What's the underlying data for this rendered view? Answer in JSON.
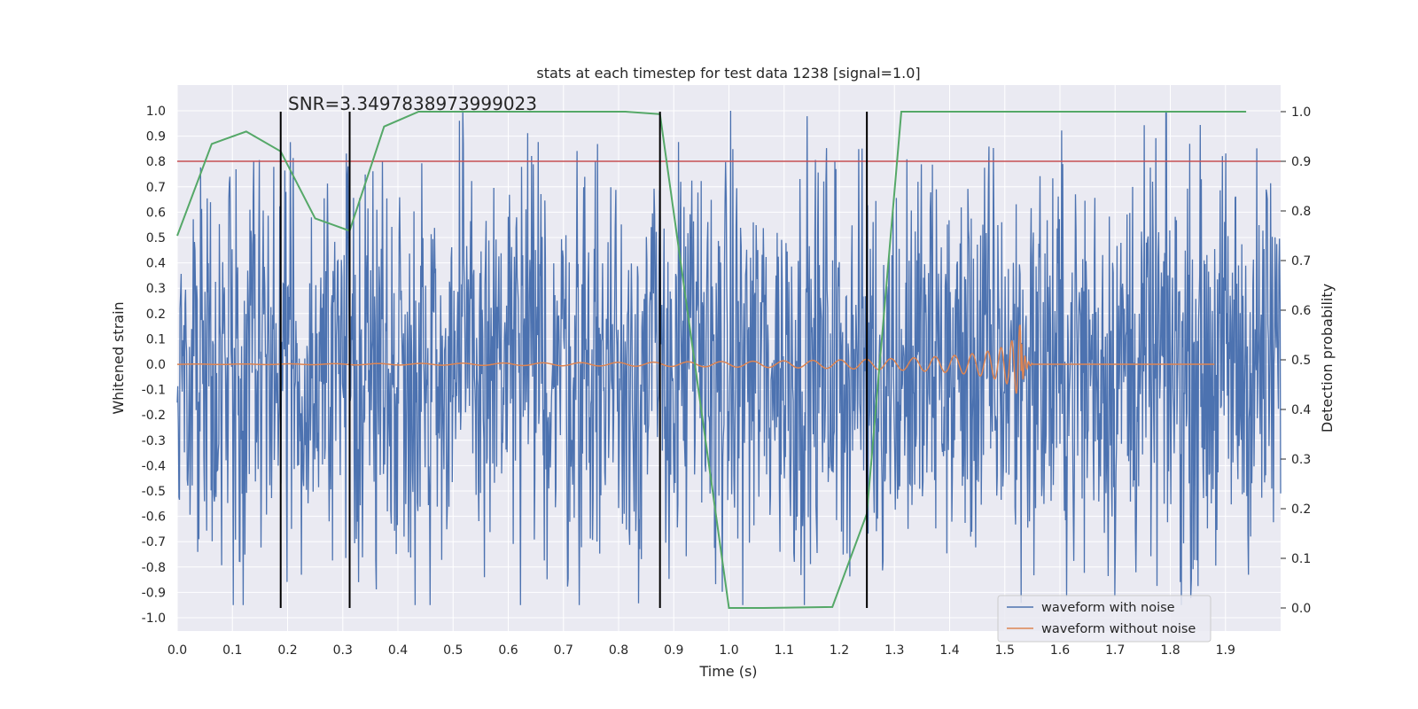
{
  "chart_data": {
    "type": "line",
    "title": "stats at each timestep for test data 1238 [signal=1.0]",
    "annotation": "SNR=3.3497838973999023",
    "xlabel": "Time (s)",
    "ylabel_left": "Whitened strain",
    "ylabel_right": "Detection probability",
    "xlim": [
      0.0,
      2.0
    ],
    "ylim_left": [
      -1.1,
      1.1
    ],
    "ylim_right": [
      -0.05,
      1.05
    ],
    "x_ticks": [
      "0.0",
      "0.1",
      "0.2",
      "0.3",
      "0.4",
      "0.5",
      "0.6",
      "0.7",
      "0.8",
      "0.9",
      "1.0",
      "1.1",
      "1.2",
      "1.3",
      "1.4",
      "1.5",
      "1.6",
      "1.7",
      "1.8",
      "1.9"
    ],
    "y_ticks_left": [
      "1.0",
      "0.9",
      "0.8",
      "0.7",
      "0.6",
      "0.5",
      "0.4",
      "0.3",
      "0.2",
      "0.1",
      "0.0",
      "-0.1",
      "-0.2",
      "-0.3",
      "-0.4",
      "-0.5",
      "-0.6",
      "-0.7",
      "-0.8",
      "-0.9",
      "-1.0"
    ],
    "y_ticks_right": [
      "1.0",
      "0.9",
      "0.8",
      "0.7",
      "0.6",
      "0.5",
      "0.4",
      "0.3",
      "0.2",
      "0.1",
      "0.0"
    ],
    "grid": true,
    "legend_position": "bottom-right",
    "series": [
      {
        "name": "waveform with noise",
        "color": "#4c72b0",
        "axis": "left",
        "description_note": "dense noisy whitened strain, amplitude roughly within -0.95 to 1.0",
        "x_range": [
          0.0,
          2.0
        ],
        "amplitude_range": [
          -0.95,
          1.0
        ]
      },
      {
        "name": "waveform without noise",
        "color": "#dd8452",
        "axis": "left",
        "x_range": [
          0.0,
          1.88
        ],
        "chirp_merger_time": 1.53,
        "peak_amplitude": 0.18
      },
      {
        "name": "",
        "color": "#55a868",
        "axis": "right",
        "x": [
          0.0,
          0.0625,
          0.125,
          0.1875,
          0.25,
          0.3125,
          0.375,
          0.4375,
          0.8125,
          0.875,
          1.0,
          1.0625,
          1.1875,
          1.25,
          1.3125,
          1.375,
          1.9375
        ],
        "y": [
          0.75,
          0.935,
          0.96,
          0.92,
          0.785,
          0.76,
          0.97,
          1.0,
          1.0,
          0.995,
          0.0,
          0.0,
          0.002,
          0.19,
          1.0,
          1.0,
          1.0
        ]
      }
    ],
    "threshold": {
      "value": 0.9,
      "axis": "right",
      "color": "#c44e52"
    },
    "event_markers": {
      "x": [
        0.1875,
        0.3125,
        0.875,
        1.25
      ],
      "color": "#000000"
    }
  }
}
